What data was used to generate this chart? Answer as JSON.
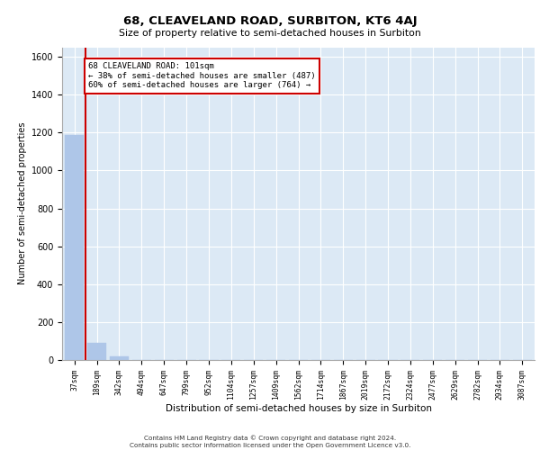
{
  "title": "68, CLEAVELAND ROAD, SURBITON, KT6 4AJ",
  "subtitle": "Size of property relative to semi-detached houses in Surbiton",
  "xlabel": "Distribution of semi-detached houses by size in Surbiton",
  "ylabel": "Number of semi-detached properties",
  "categories": [
    "37sqm",
    "189sqm",
    "342sqm",
    "494sqm",
    "647sqm",
    "799sqm",
    "952sqm",
    "1104sqm",
    "1257sqm",
    "1409sqm",
    "1562sqm",
    "1714sqm",
    "1867sqm",
    "2019sqm",
    "2172sqm",
    "2324sqm",
    "2477sqm",
    "2629sqm",
    "2782sqm",
    "2934sqm",
    "3087sqm"
  ],
  "values": [
    1185,
    90,
    20,
    0,
    0,
    0,
    0,
    0,
    0,
    0,
    0,
    0,
    0,
    0,
    0,
    0,
    0,
    0,
    0,
    0,
    0
  ],
  "bar_color": "#aec6e8",
  "annotation_text": "68 CLEAVELAND ROAD: 101sqm\n← 38% of semi-detached houses are smaller (487)\n60% of semi-detached houses are larger (764) →",
  "annotation_box_color": "#ffffff",
  "annotation_box_edgecolor": "#cc0000",
  "red_line_color": "#cc0000",
  "ylim": [
    0,
    1650
  ],
  "yticks": [
    0,
    200,
    400,
    600,
    800,
    1000,
    1200,
    1400,
    1600
  ],
  "background_color": "#dce9f5",
  "grid_color": "#ffffff",
  "footer_line1": "Contains HM Land Registry data © Crown copyright and database right 2024.",
  "footer_line2": "Contains public sector information licensed under the Open Government Licence v3.0."
}
